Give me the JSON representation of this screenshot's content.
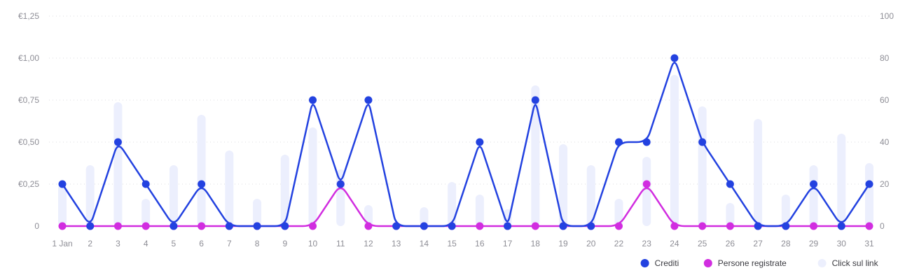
{
  "chart_data": {
    "type": "line",
    "categories": [
      "1 Jan",
      "2",
      "3",
      "4",
      "5",
      "6",
      "7",
      "8",
      "9",
      "10",
      "11",
      "12",
      "13",
      "14",
      "15",
      "16",
      "17",
      "18",
      "19",
      "20",
      "22",
      "23",
      "24",
      "25",
      "26",
      "27",
      "28",
      "29",
      "30",
      "31"
    ],
    "series": [
      {
        "name": "Crediti",
        "type": "line",
        "axis": "left",
        "color": "#2342e0",
        "values": [
          0.25,
          0,
          0.5,
          0.25,
          0,
          0.25,
          0,
          0,
          0,
          0.75,
          0.25,
          0.75,
          0,
          0,
          0,
          0.5,
          0,
          0.75,
          0,
          0,
          0.5,
          0.5,
          1.0,
          0.5,
          0.25,
          0,
          0,
          0.25,
          0,
          0.25
        ]
      },
      {
        "name": "Persone registrate",
        "type": "line",
        "axis": "left",
        "color": "#d12de0",
        "values": [
          0,
          0,
          0,
          0,
          0,
          0,
          0,
          0,
          0,
          0,
          0.25,
          0,
          0,
          0,
          0,
          0,
          0,
          0,
          0,
          0,
          0,
          0.25,
          0,
          0,
          0,
          0,
          0,
          0,
          0,
          0
        ]
      },
      {
        "name": "Click sul link",
        "type": "bar",
        "axis": "right",
        "color": "#eceffd",
        "values": [
          20,
          29,
          59,
          13,
          29,
          53,
          36,
          13,
          34,
          47,
          27,
          10,
          0,
          9,
          21,
          15,
          8,
          67,
          39,
          29,
          13,
          33,
          72,
          57,
          11,
          51,
          15,
          29,
          44,
          30
        ]
      }
    ],
    "y_left": {
      "range": [
        0,
        1.25
      ],
      "ticks": [
        0,
        0.25,
        0.5,
        0.75,
        1.0,
        1.25
      ],
      "tick_labels": [
        "0",
        "€0,25",
        "€0,50",
        "€0,75",
        "€1,00",
        "€1,25"
      ]
    },
    "y_right": {
      "range": [
        0,
        100
      ],
      "ticks": [
        0,
        20,
        40,
        60,
        80,
        100
      ],
      "tick_labels": [
        "0",
        "20",
        "40",
        "60",
        "80",
        "100"
      ]
    },
    "grid": true,
    "legend_position": "bottom-right",
    "title": "",
    "xlabel": "",
    "ylabel": ""
  }
}
